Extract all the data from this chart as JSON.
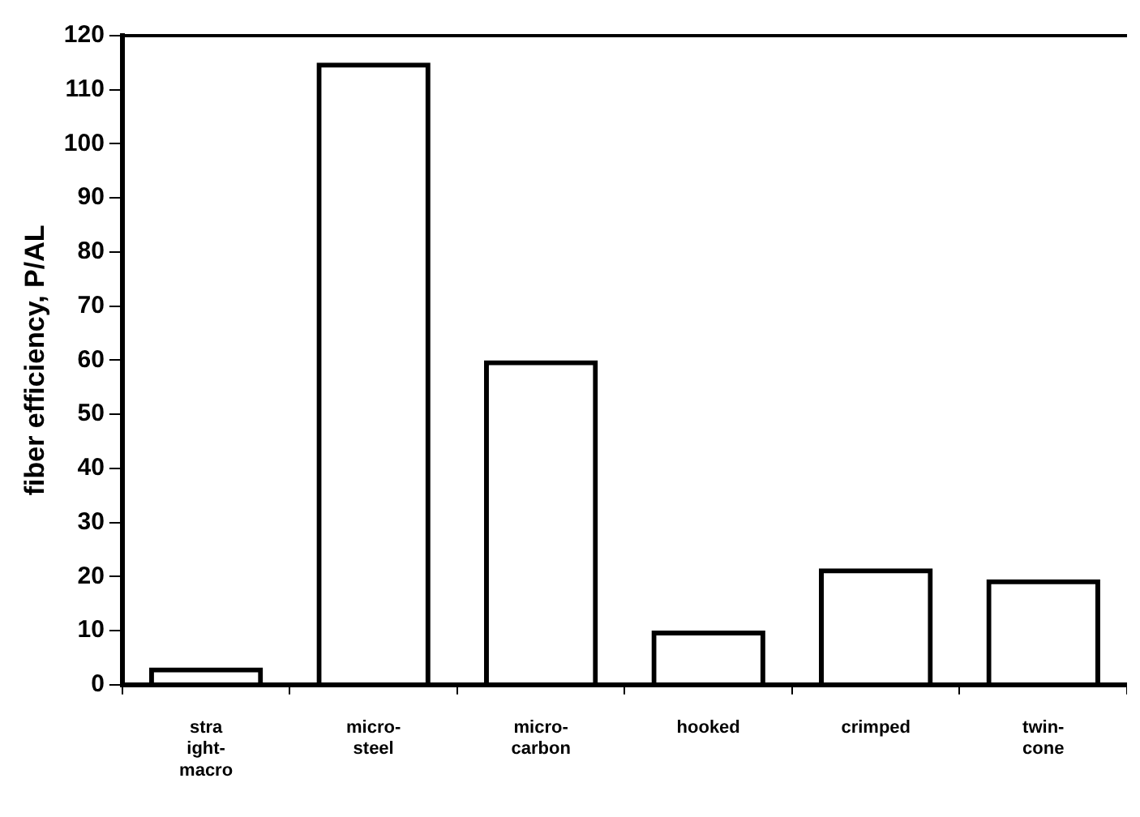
{
  "chart_data": {
    "type": "bar",
    "ylabel": "fiber efficiency, P/AL",
    "categories": [
      "stra\night-\nmacro",
      "micro-\nsteel",
      "micro-\ncarbon",
      "hooked",
      "crimped",
      "twin-\ncone"
    ],
    "values": [
      3.2,
      115,
      60,
      10,
      21.5,
      19.5
    ],
    "color": "#000000",
    "ylim": [
      0,
      120
    ],
    "yticks": [
      0,
      10,
      20,
      30,
      40,
      50,
      60,
      70,
      80,
      90,
      100,
      110,
      120
    ],
    "grid": false,
    "legend": false
  }
}
